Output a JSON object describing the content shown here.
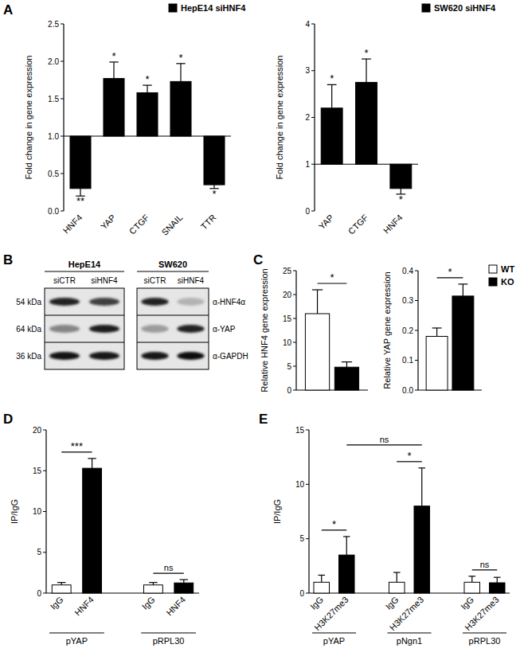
{
  "panel_labels": [
    "A",
    "B",
    "C",
    "D",
    "E"
  ],
  "chart_data": [
    {
      "type": "bar",
      "y_label": "Fold change in gene expression",
      "categories": [
        "HNF4",
        "YAP",
        "CTGF",
        "SNAIL",
        "TTR"
      ],
      "baseline": 1,
      "series": [
        {
          "name": "HepE14 siHNF4",
          "color": "#000000",
          "values": [
            0.3,
            1.77,
            1.58,
            1.73,
            0.35
          ],
          "errors": [
            0.1,
            0.22,
            0.1,
            0.24,
            0.05
          ],
          "significance": [
            "**",
            "*",
            "*",
            "*",
            "*"
          ]
        }
      ],
      "ylim": [
        0,
        2.5
      ],
      "yticks": [
        {
          "value": 0,
          "label": "0.0"
        },
        0.5,
        {
          "value": 1,
          "label": "1.0"
        },
        1.5,
        {
          "value": 2,
          "label": "2.0"
        },
        2.5
      ],
      "grid": false,
      "legend": "top-right"
    },
    {
      "type": "bar",
      "y_label": "Fold change in gene expression",
      "categories": [
        "YAP",
        "CTGF",
        "HNF4"
      ],
      "baseline": 1,
      "series": [
        {
          "name": "SW620 siHNF4",
          "color": "#000000",
          "values": [
            2.2,
            2.75,
            0.48
          ],
          "errors": [
            0.5,
            0.5,
            0.12
          ],
          "significance": [
            "*",
            "*",
            "*"
          ]
        }
      ],
      "ylim": [
        0,
        4
      ],
      "yticks": [
        0,
        1,
        2,
        3,
        4
      ],
      "grid": false,
      "legend": "top-right"
    },
    {
      "type": "bar",
      "y_label": "Relative HNF4 gene expression",
      "categories": [
        null
      ],
      "series": [
        {
          "color": "#ffffff",
          "values": [
            16
          ],
          "errors": [
            5
          ]
        },
        {
          "color": "#000000",
          "values": [
            4.8
          ],
          "errors": [
            1.1
          ]
        }
      ],
      "comparisons": [
        {
          "text": "*",
          "bars": [
            0,
            1
          ]
        }
      ],
      "ylim": [
        0,
        25
      ],
      "yticks": [
        0,
        5,
        10,
        15,
        20,
        25
      ],
      "grid": false
    },
    {
      "type": "bar",
      "y_label": "Relative YAP gene expression",
      "categories": [
        null
      ],
      "series": [
        {
          "name": "WT",
          "color": "#ffffff",
          "values": [
            0.18
          ],
          "errors": [
            0.028
          ]
        },
        {
          "name": "KO",
          "color": "#000000",
          "values": [
            0.315
          ],
          "errors": [
            0.04
          ]
        }
      ],
      "comparisons": [
        {
          "text": "*",
          "bars": [
            0,
            1
          ]
        }
      ],
      "ylim": [
        0,
        0.4
      ],
      "yticks": [
        {
          "value": 0,
          "label": "0.0"
        },
        0.1,
        0.2,
        0.3,
        0.4
      ],
      "grid": false,
      "legend": "right"
    },
    {
      "type": "bar",
      "y_label": "IP/IgG",
      "categories": [
        "IgG",
        "HNF4",
        "IgG",
        "HNF4"
      ],
      "groups": [
        "pYAP",
        "pRPL30"
      ],
      "series": [
        {
          "colors": [
            "#ffffff",
            "#000000",
            "#ffffff",
            "#000000"
          ],
          "values": [
            1.0,
            15.3,
            1.0,
            1.25
          ],
          "errors": [
            0.3,
            1.2,
            0.3,
            0.4
          ]
        }
      ],
      "comparisons": [
        {
          "text": "***",
          "bars": [
            0,
            1
          ]
        },
        {
          "text": "ns",
          "bars": [
            2,
            3
          ]
        }
      ],
      "ylim": [
        0,
        20
      ],
      "yticks": [
        0,
        5,
        10,
        15,
        20
      ],
      "grid": false
    },
    {
      "type": "bar",
      "y_label": "IP/IgG",
      "categories": [
        "IgG",
        "H3K27me3",
        "IgG",
        "H3K27me3",
        "IgG",
        "H3K27me3"
      ],
      "groups": [
        "pYAP",
        "pNgn1",
        "pRPL30"
      ],
      "series": [
        {
          "colors": [
            "#ffffff",
            "#000000",
            "#ffffff",
            "#000000",
            "#ffffff",
            "#000000"
          ],
          "values": [
            1.0,
            3.5,
            1.0,
            8.0,
            1.0,
            0.95
          ],
          "errors": [
            0.65,
            1.7,
            0.9,
            3.5,
            0.55,
            0.5
          ]
        }
      ],
      "comparisons": [
        {
          "text": "*",
          "bars": [
            0,
            1
          ]
        },
        {
          "text": "ns",
          "bars": [
            1,
            3
          ]
        },
        {
          "text": "*",
          "bars": [
            2,
            3
          ]
        },
        {
          "text": "ns",
          "bars": [
            4,
            5
          ]
        }
      ],
      "ylim": [
        0,
        15
      ],
      "yticks": [
        0,
        5,
        10,
        15
      ],
      "grid": false
    }
  ],
  "blot": {
    "cell_lines": [
      "HepE14",
      "SW620"
    ],
    "lanes": [
      "siCTR",
      "siHNF4",
      "siCTR",
      "siHNF4"
    ],
    "rows": [
      {
        "size": "54 kDa",
        "antibody": "α-HNF4α"
      },
      {
        "size": "64 kDa",
        "antibody": "α-YAP"
      },
      {
        "size": "36 kDa",
        "antibody": "α-GAPDH"
      }
    ]
  }
}
